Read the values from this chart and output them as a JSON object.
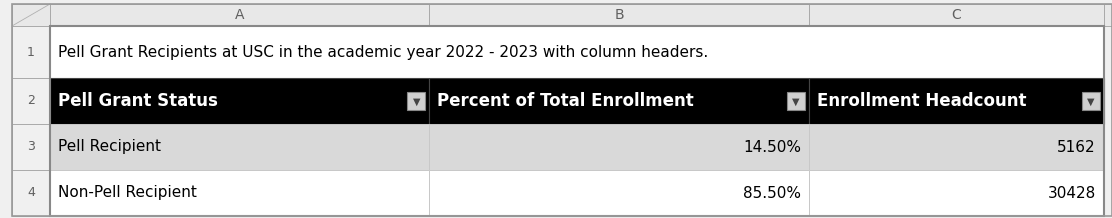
{
  "title_row": "Pell Grant Recipients at USC in the academic year 2022 - 2023 with column headers.",
  "col_headers": [
    "Pell Grant Status",
    "Percent of Total Enrollment",
    "Enrollment Headcount"
  ],
  "rows": [
    [
      "Pell Recipient",
      "14.50%",
      "5162"
    ],
    [
      "Non-Pell Recipient",
      "85.50%",
      "30428"
    ]
  ],
  "row_labels": [
    "1",
    "2",
    "3",
    "4"
  ],
  "col_labels": [
    "A",
    "B",
    "C"
  ],
  "header_bg": "#000000",
  "header_fg": "#ffffff",
  "row3_bg": "#d9d9d9",
  "row4_bg": "#ffffff",
  "fig_bg": "#f0f0f0",
  "cell_bg_white": "#ffffff",
  "col_header_bg": "#e8e8e8",
  "row_header_bg": "#f0f0f0",
  "cell_border": "#c8c8c8",
  "col_header_border": "#aaaaaa",
  "outer_border": "#888888",
  "dropdown_bg": "#d0d0d0",
  "dropdown_border": "#888888",
  "title_font_size": 11,
  "data_font_size": 11,
  "header_font_size": 12,
  "col_label_font_size": 10,
  "row_label_font_size": 9,
  "fig_width": 11.12,
  "fig_height": 2.18,
  "dpi": 100
}
